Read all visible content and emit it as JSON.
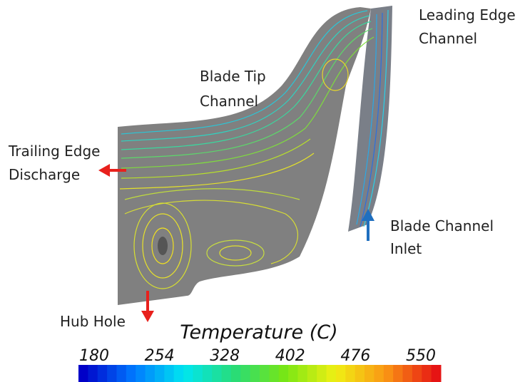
{
  "labels": {
    "leading_edge": [
      "Leading Edge",
      "Channel"
    ],
    "blade_tip": [
      "Blade Tip",
      "Channel"
    ],
    "trailing_edge": [
      "Trailing Edge",
      "Discharge"
    ],
    "blade_inlet": [
      "Blade Channel",
      "Inlet"
    ],
    "hub_hole": "Hub Hole"
  },
  "colorbar": {
    "title": "Temperature (C)",
    "ticks": [
      180,
      254,
      328,
      402,
      476,
      550
    ]
  }
}
